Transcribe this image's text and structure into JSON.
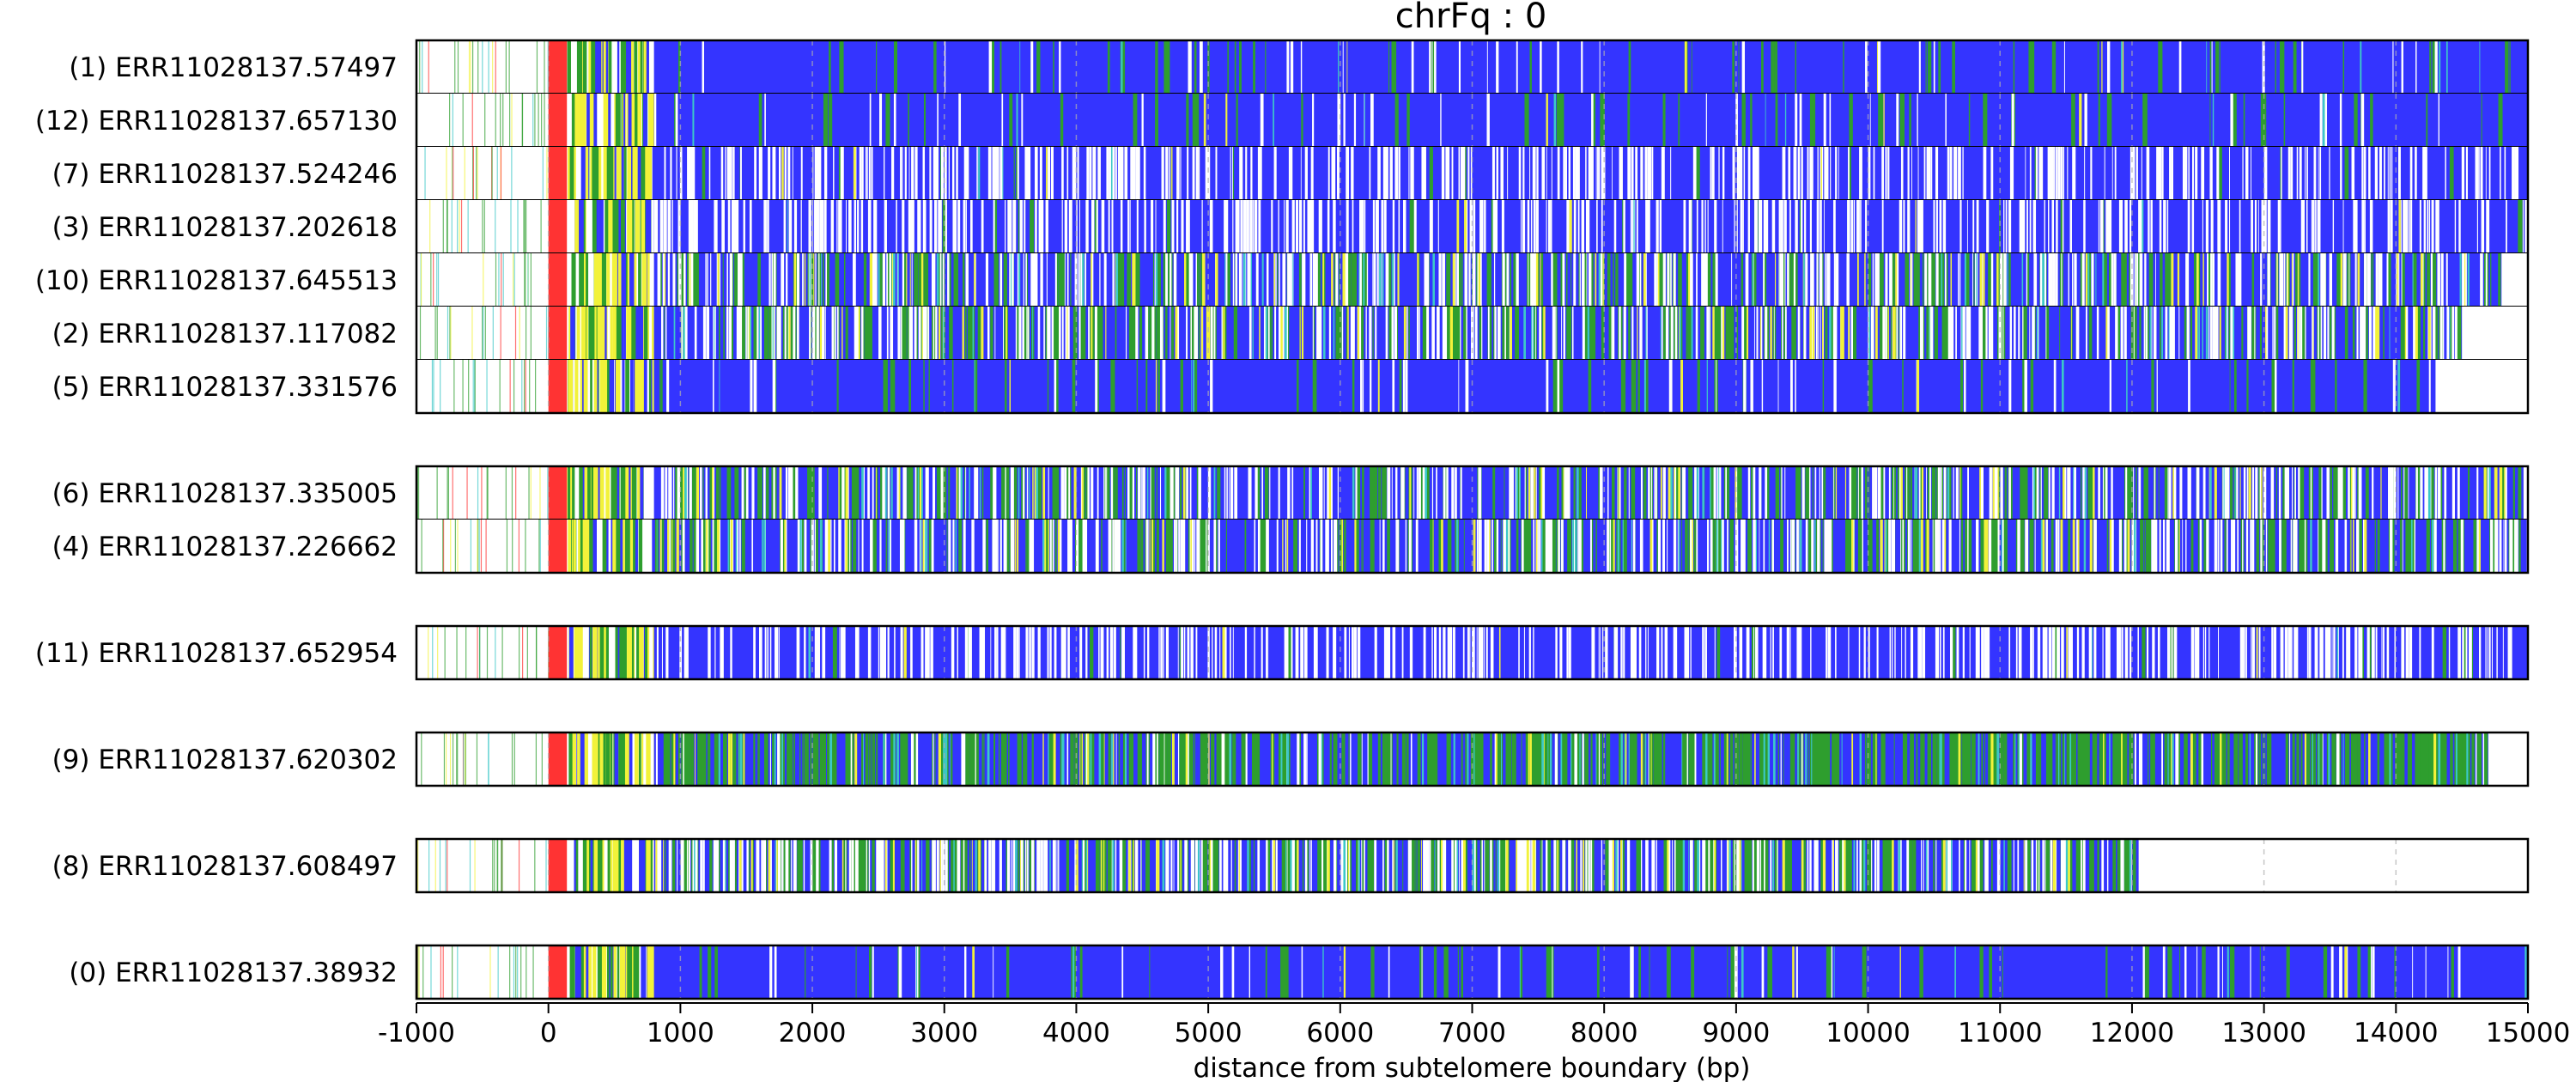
{
  "chart_data": {
    "type": "heatmap",
    "title": "chrFq : 0",
    "xlabel": "distance from subtelomere boundary (bp)",
    "xlim": [
      -1000,
      15000
    ],
    "x_ticks": [
      "-1000",
      "0",
      "1000",
      "2000",
      "3000",
      "4000",
      "5000",
      "6000",
      "7000",
      "8000",
      "9000",
      "10000",
      "11000",
      "12000",
      "13000",
      "14000",
      "15000"
    ],
    "gridlines": "dashed vertical every 1000 bp",
    "colors": {
      "background_repeat": "#3434ff",
      "gap": "#ffffff",
      "green": "#2e9e2e",
      "yellow": "#f2f23a",
      "red": "#ff3333",
      "teal": "#3cc8c8",
      "outline": "#000000"
    },
    "groups": [
      {
        "reads": [
          {
            "label": "(1) ERR11028137.57497",
            "end_bp": 15000,
            "style": "blue"
          },
          {
            "label": "(12) ERR11028137.657130",
            "end_bp": 15000,
            "style": "blue"
          },
          {
            "label": "(7) ERR11028137.524246",
            "end_bp": 15000,
            "style": "blue-white"
          },
          {
            "label": "(3) ERR11028137.202618",
            "end_bp": 15000,
            "style": "blue-white"
          },
          {
            "label": "(10) ERR11028137.645513",
            "end_bp": 14800,
            "style": "mixed"
          },
          {
            "label": "(2) ERR11028137.117082",
            "end_bp": 14500,
            "style": "mixed"
          },
          {
            "label": "(5) ERR11028137.331576",
            "end_bp": 14300,
            "style": "blue"
          }
        ]
      },
      {
        "reads": [
          {
            "label": "(6) ERR11028137.335005",
            "end_bp": 15000,
            "style": "mixed"
          },
          {
            "label": "(4) ERR11028137.226662",
            "end_bp": 15000,
            "style": "mixed"
          }
        ]
      },
      {
        "reads": [
          {
            "label": "(11) ERR11028137.652954",
            "end_bp": 15000,
            "style": "blue-white"
          }
        ]
      },
      {
        "reads": [
          {
            "label": "(9) ERR11028137.620302",
            "end_bp": 14700,
            "style": "green"
          }
        ]
      },
      {
        "reads": [
          {
            "label": "(8) ERR11028137.608497",
            "end_bp": 12050,
            "style": "mixed"
          }
        ]
      },
      {
        "reads": [
          {
            "label": "(0) ERR11028137.38932",
            "end_bp": 15000,
            "style": "blue"
          }
        ]
      }
    ]
  }
}
